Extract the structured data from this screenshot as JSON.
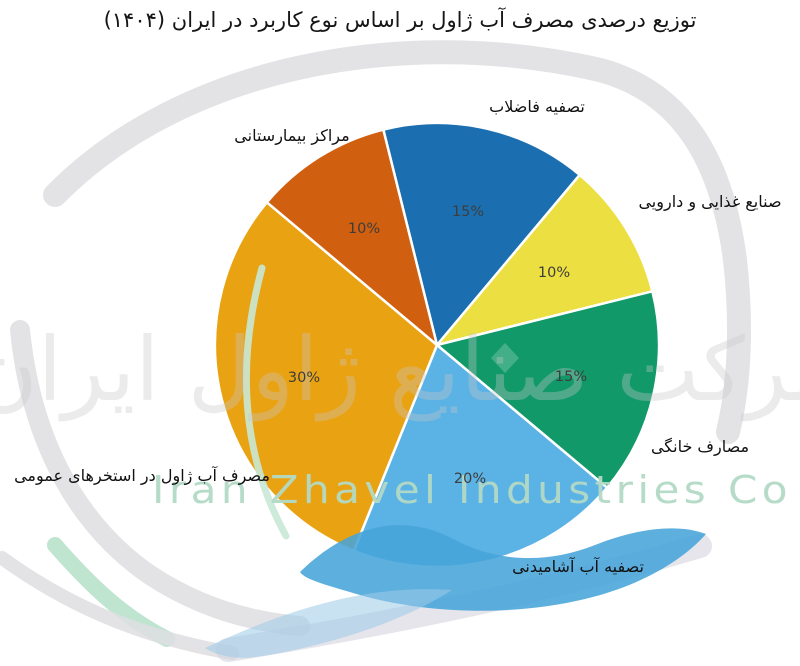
{
  "title": "توزیع درصدی مصرف آب ژاول بر اساس نوع کاربرد در ایران (۱۴۰۴)",
  "watermark": {
    "persian_company_name": "شرکت صنایع ژاول ایران",
    "latin_company_name": "Iran Zhavel Industries Co",
    "latin_color": "#b3dac6",
    "gray_color": "#e1e1e4",
    "mint_color": "#bfe5d1",
    "wave_blue": "#47a4da"
  },
  "chart_data": {
    "type": "pie",
    "title": "توزیع درصدی مصرف آب ژاول بر اساس نوع کاربرد در ایران (۱۴۰۴)",
    "unit": "%",
    "legend": "none",
    "center": [
      437,
      345
    ],
    "radius": 222,
    "slices": [
      {
        "label": "تصفیه فاضلاب",
        "value": 15,
        "pct_label": "15%",
        "color": "#1b6fb0",
        "start_deg": 50,
        "end_deg": 104,
        "label_pos": [
          537,
          112
        ],
        "pct_pos": [
          468,
          216
        ]
      },
      {
        "label": "صنایع غذایی و دارویی",
        "value": 10,
        "pct_label": "10%",
        "color": "#ecdf41",
        "start_deg": 14,
        "end_deg": 50,
        "label_pos": [
          710,
          207
        ],
        "pct_pos": [
          554,
          277
        ]
      },
      {
        "label": "مصارف خانگی",
        "value": 15,
        "pct_label": "15%",
        "color": "#12996a",
        "start_deg": -40,
        "end_deg": 14,
        "label_pos": [
          700,
          452
        ],
        "pct_pos": [
          571,
          381
        ]
      },
      {
        "label": "تصفیه آب آشامیدنی",
        "value": 20,
        "pct_label": "20%",
        "color": "#5bb2e4",
        "start_deg": 248,
        "end_deg": 320,
        "label_pos": [
          578,
          572
        ],
        "pct_pos": [
          470,
          483
        ]
      },
      {
        "label": "مصرف آب ژاول در استخرهای عمومی",
        "value": 30,
        "pct_label": "30%",
        "color": "#e9a312",
        "start_deg": 140,
        "end_deg": 248,
        "label_pos": [
          142,
          481
        ],
        "pct_pos": [
          304,
          382
        ]
      },
      {
        "label": "مراکز بیمارستانی",
        "value": 10,
        "pct_label": "10%",
        "color": "#d05f10",
        "start_deg": 104,
        "end_deg": 140,
        "label_pos": [
          292,
          141
        ],
        "pct_pos": [
          364,
          233
        ]
      }
    ]
  }
}
